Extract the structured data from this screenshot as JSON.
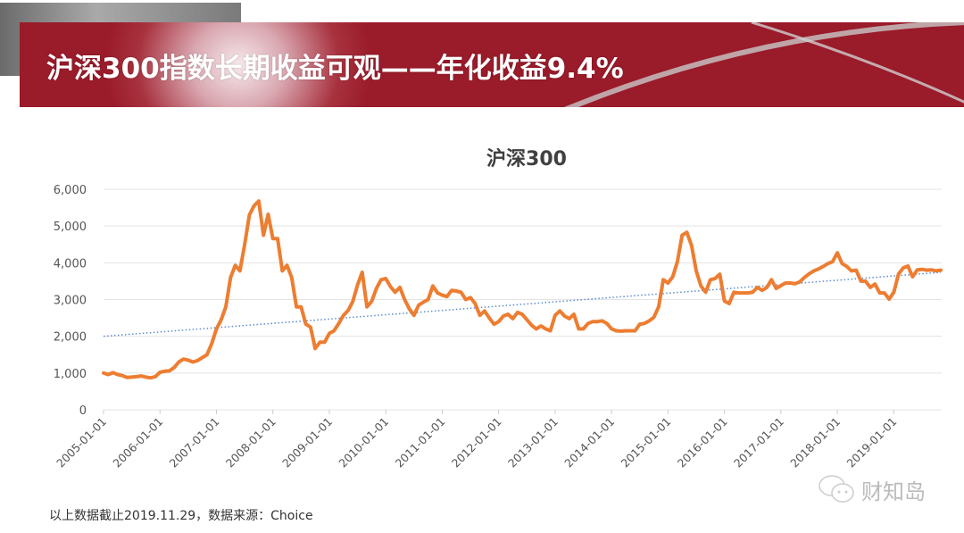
{
  "header": {
    "title": "沪深300指数长期收益可观——年化收益9.4%"
  },
  "footer": {
    "note": "以上数据截止2019.11.29，数据来源：Choice"
  },
  "watermark": {
    "text": "财知岛",
    "icon": "wechat-icon"
  },
  "colors": {
    "banner": "#9a1b2a",
    "line": "#ed7d31",
    "trend": "#5b8bd6",
    "grid": "#e3e3e3"
  },
  "chart_data": {
    "type": "line",
    "title": "沪深300",
    "xlabel": "",
    "ylabel": "",
    "ylim": [
      0,
      6000
    ],
    "yticks": [
      "0",
      "1,000",
      "2,000",
      "3,000",
      "4,000",
      "5,000",
      "6,000"
    ],
    "xticks": [
      "2005-01-01",
      "2006-01-01",
      "2007-01-01",
      "2008-01-01",
      "2009-01-01",
      "2010-01-01",
      "2011-01-01",
      "2012-01-01",
      "2013-01-01",
      "2014-01-01",
      "2015-01-01",
      "2016-01-01",
      "2017-01-01",
      "2018-01-01",
      "2019-01-01"
    ],
    "grid": true,
    "legend": "none",
    "x_start": "2005-01",
    "x_frequency": "monthly",
    "series": [
      {
        "values": [
          1000,
          960,
          1010,
          960,
          930,
          880,
          890,
          900,
          920,
          890,
          870,
          900,
          1020,
          1050,
          1060,
          1150,
          1300,
          1380,
          1350,
          1300,
          1340,
          1420,
          1500,
          1800,
          2200,
          2450,
          2800,
          3600,
          3930,
          3780,
          4500,
          5300,
          5550,
          5680,
          4750,
          5320,
          4660,
          4660,
          3780,
          3930,
          3600,
          2800,
          2800,
          2330,
          2250,
          1670,
          1840,
          1840,
          2080,
          2150,
          2350,
          2570,
          2700,
          2950,
          3400,
          3740,
          2800,
          2950,
          3300,
          3540,
          3570,
          3350,
          3200,
          3330,
          3000,
          2750,
          2570,
          2850,
          2930,
          3000,
          3370,
          3180,
          3120,
          3080,
          3250,
          3230,
          3200,
          3000,
          3050,
          2890,
          2570,
          2690,
          2500,
          2330,
          2400,
          2550,
          2600,
          2480,
          2650,
          2600,
          2450,
          2300,
          2200,
          2280,
          2200,
          2150,
          2570,
          2690,
          2550,
          2480,
          2600,
          2200,
          2200,
          2350,
          2400,
          2400,
          2420,
          2350,
          2200,
          2150,
          2140,
          2150,
          2150,
          2150,
          2330,
          2350,
          2420,
          2520,
          2800,
          3540,
          3450,
          3620,
          4030,
          4750,
          4830,
          4470,
          3780,
          3370,
          3200,
          3540,
          3570,
          3690,
          2960,
          2890,
          3200,
          3180,
          3180,
          3180,
          3200,
          3330,
          3250,
          3330,
          3540,
          3300,
          3380,
          3450,
          3450,
          3430,
          3480,
          3600,
          3700,
          3780,
          3830,
          3900,
          3980,
          4030,
          4270,
          3980,
          3900,
          3780,
          3800,
          3500,
          3500,
          3330,
          3420,
          3180,
          3180,
          3010,
          3200,
          3690,
          3860,
          3910,
          3620,
          3810,
          3820,
          3800,
          3810,
          3780,
          3800
        ]
      },
      {
        "type": "trendline",
        "style": "dotted",
        "values_at_ends": [
          2000,
          3740
        ]
      }
    ]
  }
}
